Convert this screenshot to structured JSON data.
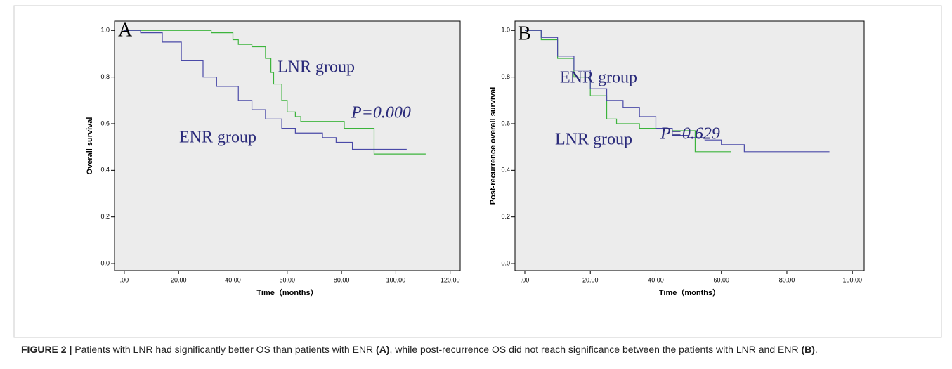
{
  "chart_data": [
    {
      "type": "step",
      "ylabel": "Overall survival",
      "xlabel": "Time（months）",
      "annotations": [
        "A",
        "LNR group",
        "ENR group",
        "P=0.000"
      ],
      "xlim": [
        -3.6,
        123.7
      ],
      "ylim": [
        -0.03,
        1.04
      ],
      "xticks": [
        {
          "value": 0,
          "label": ".00"
        },
        {
          "value": 20,
          "label": "20.00"
        },
        {
          "value": 40,
          "label": "40.00"
        },
        {
          "value": 60,
          "label": "60.00"
        },
        {
          "value": 80,
          "label": "80.00"
        },
        {
          "value": 100,
          "label": "100.00"
        },
        {
          "value": 120,
          "label": "120.00"
        }
      ],
      "yticks": [
        {
          "value": 0,
          "label": "0.0"
        },
        0.2,
        0.4,
        0.6,
        0.8,
        {
          "value": 1,
          "label": "1.0"
        }
      ],
      "series": [
        {
          "color": "#3cb43c",
          "x": [
            0,
            32,
            40,
            42,
            47,
            52,
            54,
            55,
            58,
            60,
            63,
            65,
            81,
            92,
            111
          ],
          "values": [
            1.0,
            0.99,
            0.96,
            0.94,
            0.93,
            0.88,
            0.82,
            0.77,
            0.7,
            0.65,
            0.63,
            0.61,
            0.58,
            0.47,
            0.47
          ]
        },
        {
          "color": "#4a4aa8",
          "x": [
            0,
            6,
            14,
            21,
            29,
            34,
            42,
            47,
            52,
            58,
            63,
            73,
            78,
            84,
            104
          ],
          "values": [
            1.0,
            0.99,
            0.95,
            0.87,
            0.8,
            0.76,
            0.7,
            0.66,
            0.62,
            0.58,
            0.56,
            0.54,
            0.52,
            0.49,
            0.49
          ]
        }
      ]
    },
    {
      "type": "step",
      "ylabel": "Post-recurrence overall survival",
      "xlabel": "Time（months）",
      "annotations": [
        "B",
        "ENR group",
        "LNR group",
        "P=0.629"
      ],
      "xlim": [
        -3,
        103.6
      ],
      "ylim": [
        -0.03,
        1.04
      ],
      "xticks": [
        {
          "value": 0,
          "label": ".00"
        },
        {
          "value": 20,
          "label": "20.00"
        },
        {
          "value": 40,
          "label": "40.00"
        },
        {
          "value": 60,
          "label": "60.00"
        },
        {
          "value": 80,
          "label": "80.00"
        },
        {
          "value": 100,
          "label": "100.00"
        }
      ],
      "yticks": [
        {
          "value": 0,
          "label": "0.0"
        },
        0.2,
        0.4,
        0.6,
        0.8,
        {
          "value": 1,
          "label": "1.0"
        }
      ],
      "series": [
        {
          "color": "#3cb43c",
          "x": [
            0,
            5,
            10,
            15,
            20,
            25,
            28,
            35,
            45,
            52,
            63
          ],
          "values": [
            1.0,
            0.96,
            0.88,
            0.8,
            0.72,
            0.62,
            0.6,
            0.58,
            0.57,
            0.48,
            0.48
          ]
        },
        {
          "color": "#4a4aa8",
          "x": [
            0,
            5,
            10,
            15,
            20,
            25,
            30,
            35,
            40,
            45,
            50,
            55,
            60,
            67,
            93
          ],
          "values": [
            1.0,
            0.97,
            0.89,
            0.83,
            0.75,
            0.7,
            0.67,
            0.63,
            0.58,
            0.55,
            0.54,
            0.53,
            0.51,
            0.48,
            0.48
          ]
        }
      ]
    }
  ],
  "caption": {
    "label": "FIGURE 2 |",
    "text1": "Patients with LNR had significantly better OS than patients with ENR",
    "ref1": "(A)",
    "text2": ", while post-recurrence OS did not reach significance between the patients with LNR and ENR",
    "ref2": "(B)",
    "end": "."
  }
}
